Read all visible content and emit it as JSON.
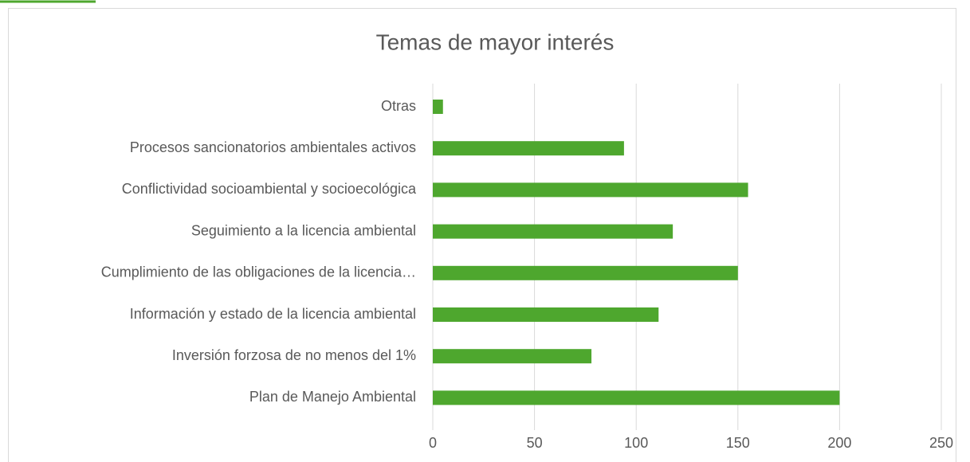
{
  "chart_data": {
    "type": "bar",
    "orientation": "horizontal",
    "title": "Temas de mayor interés",
    "categories": [
      "Otras",
      "Procesos sancionatorios ambientales activos",
      "Conflictividad socioambiental y socioecológica",
      "Seguimiento a la licencia ambiental",
      "Cumplimiento de las obligaciones de la licencia…",
      "Información y estado de la licencia ambiental",
      "Inversión forzosa de no menos del 1%",
      "Plan de Manejo Ambiental"
    ],
    "values": [
      5,
      94,
      155,
      118,
      150,
      111,
      78,
      200
    ],
    "color": "#4ea72e",
    "xlim": [
      0,
      250
    ],
    "xticks": [
      0,
      50,
      100,
      150,
      200,
      250
    ],
    "grid": true
  }
}
